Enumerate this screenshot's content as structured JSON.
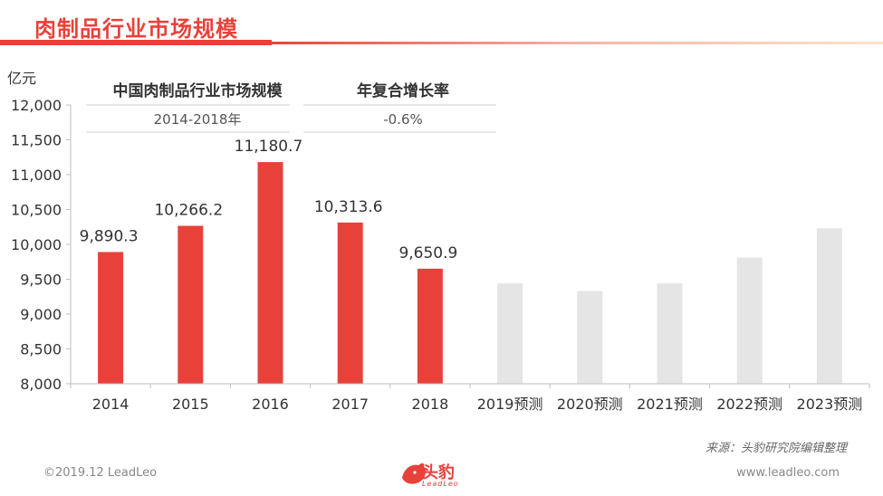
{
  "page": {
    "title": "肉制品行业市场规模",
    "source": "来源：头豹研究院编辑整理",
    "footer_left": "©2019.12 LeadLeo",
    "footer_right": "www.leadleo.com",
    "logo_text": "头豹",
    "logo_sub": "LeadLeo"
  },
  "colors": {
    "accent": "#e8413a",
    "forecast": "#e5e5e5"
  },
  "chart_data": {
    "type": "bar",
    "ylabel": "亿元",
    "ylim": [
      8000,
      12000
    ],
    "yticks": [
      "8,000",
      "8,500",
      "9,000",
      "9,500",
      "10,000",
      "10,500",
      "11,000",
      "11,500",
      "12,000"
    ],
    "categories": [
      "2014",
      "2015",
      "2016",
      "2017",
      "2018",
      "2019预测",
      "2020预测",
      "2021预测",
      "2022预测",
      "2023预测"
    ],
    "values": [
      9890.3,
      10266.2,
      11180.7,
      10313.6,
      9650.9,
      9440,
      9330,
      9440,
      9810,
      10230
    ],
    "labels": [
      "9,890.3",
      "10,266.2",
      "11,180.7",
      "10,313.6",
      "9,650.9",
      "",
      "",
      "",
      "",
      ""
    ],
    "forecast": [
      false,
      false,
      false,
      false,
      false,
      true,
      true,
      true,
      true,
      true
    ],
    "grid": false,
    "inset_table": {
      "headers": [
        "中国肉制品行业市场规模",
        "年复合增长率"
      ],
      "row": [
        "2014-2018年",
        "-0.6%"
      ]
    }
  }
}
